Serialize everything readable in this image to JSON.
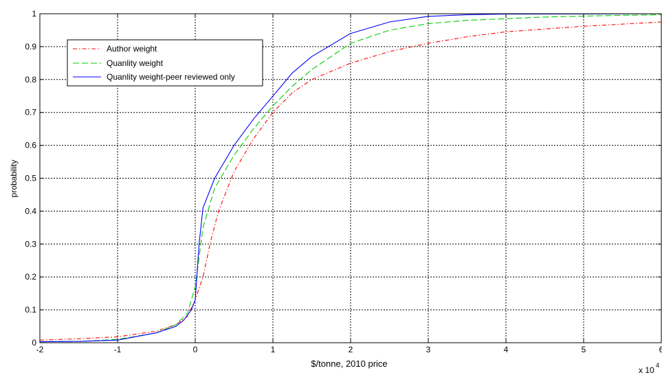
{
  "chart_data": {
    "type": "line",
    "title": "",
    "xlabel": "$/tonne, 2010 price",
    "ylabel": "probability",
    "x_multiplier_label": "x 10",
    "x_multiplier_exponent": "4",
    "xlim": [
      -2,
      6
    ],
    "ylim": [
      0,
      1
    ],
    "xticks": [
      -2,
      -1,
      0,
      1,
      2,
      3,
      4,
      5,
      6
    ],
    "yticks": [
      0,
      0.1,
      0.2,
      0.3,
      0.4,
      0.5,
      0.6,
      0.7,
      0.8,
      0.9,
      1
    ],
    "grid": true,
    "legend_position": "top-left",
    "series": [
      {
        "name": "Author weight",
        "color": "#ff0000",
        "dash": "dash-dot",
        "x": [
          -2,
          -1.5,
          -1,
          -0.5,
          -0.25,
          -0.1,
          0,
          0.1,
          0.2,
          0.3,
          0.5,
          0.75,
          1,
          1.25,
          1.5,
          2,
          2.5,
          3,
          3.5,
          4,
          5,
          6
        ],
        "y": [
          0.008,
          0.012,
          0.018,
          0.035,
          0.055,
          0.08,
          0.13,
          0.2,
          0.31,
          0.4,
          0.52,
          0.62,
          0.7,
          0.76,
          0.8,
          0.85,
          0.885,
          0.91,
          0.93,
          0.945,
          0.962,
          0.975
        ]
      },
      {
        "name": "Quanlity weight",
        "color": "#00cc00",
        "dash": "dashed",
        "x": [
          -2,
          -1.5,
          -1,
          -0.5,
          -0.25,
          -0.1,
          0,
          0.1,
          0.25,
          0.5,
          0.75,
          1,
          1.25,
          1.5,
          2,
          2.5,
          3,
          3.5,
          4,
          4.5,
          5,
          6
        ],
        "y": [
          0.003,
          0.004,
          0.01,
          0.03,
          0.055,
          0.09,
          0.17,
          0.35,
          0.47,
          0.57,
          0.65,
          0.72,
          0.78,
          0.83,
          0.91,
          0.95,
          0.97,
          0.98,
          0.985,
          0.99,
          0.993,
          0.997
        ]
      },
      {
        "name": "Quanlity weight-peer reviewed only",
        "color": "#0000ff",
        "dash": "solid",
        "x": [
          -2,
          -1.5,
          -1,
          -0.5,
          -0.25,
          -0.15,
          -0.05,
          0,
          0.05,
          0.1,
          0.25,
          0.5,
          0.75,
          1,
          1.25,
          1.5,
          2,
          2.5,
          3,
          3.5,
          4,
          6
        ],
        "y": [
          0.003,
          0.004,
          0.008,
          0.03,
          0.05,
          0.068,
          0.1,
          0.13,
          0.3,
          0.41,
          0.5,
          0.6,
          0.68,
          0.75,
          0.82,
          0.87,
          0.94,
          0.975,
          0.992,
          0.997,
          0.999,
          1.0
        ]
      }
    ]
  }
}
